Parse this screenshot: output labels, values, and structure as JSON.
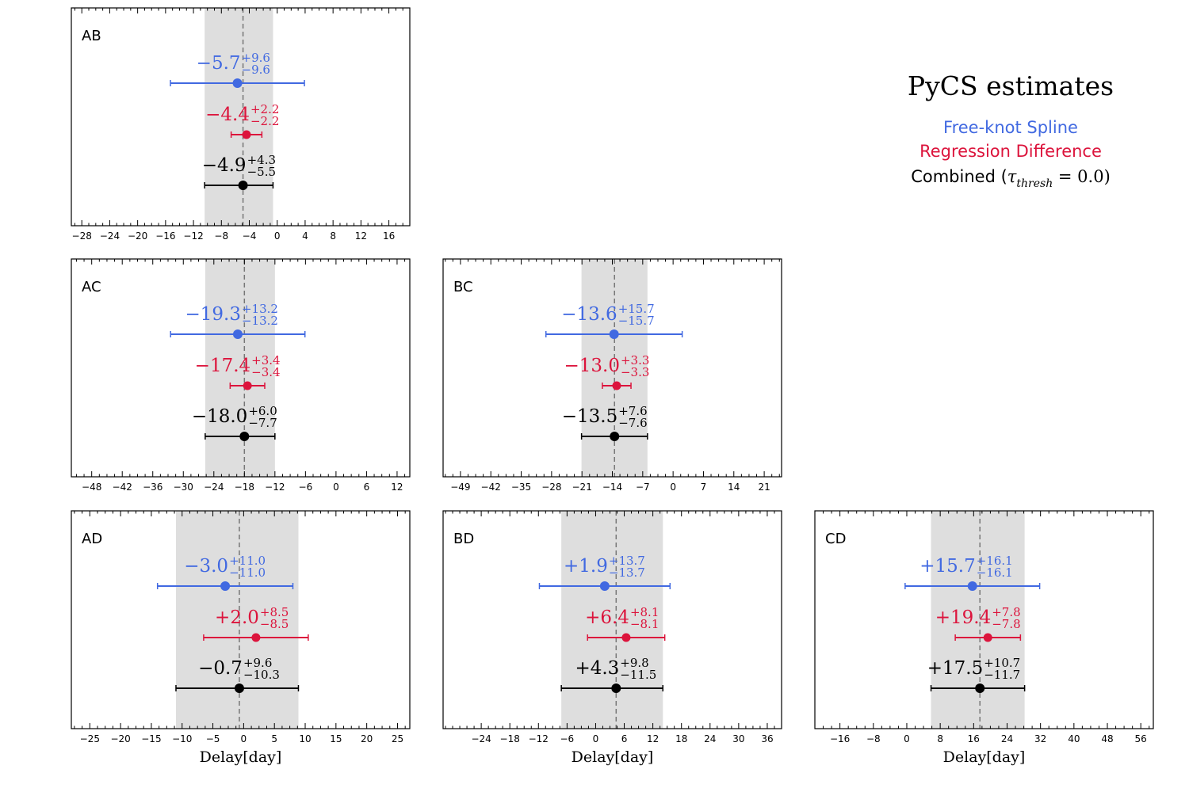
{
  "legend": {
    "title": "PyCS estimates",
    "entries": [
      {
        "label": "Free-knot Spline",
        "color": "#4169e1"
      },
      {
        "label": "Regression Difference",
        "color": "#dc143c"
      },
      {
        "label_prefix": "Combined (",
        "label_math": "τ",
        "label_sub": "thresh",
        "label_suffix": " = 0.0)",
        "color": "#000000"
      }
    ]
  },
  "xlabel": "Delay[day]",
  "chart_data": [
    {
      "type": "errorbar",
      "pair": "AB",
      "xlim": [
        -29.5,
        19
      ],
      "ticks": [
        -28,
        -24,
        -20,
        -16,
        -12,
        -8,
        -4,
        0,
        4,
        8,
        12,
        16
      ],
      "band": [
        -10.4,
        -0.6
      ],
      "dashed_at": -4.9,
      "show_xlabel": false,
      "estimates": [
        {
          "method": "Free-knot Spline",
          "value": -5.7,
          "plus": 9.6,
          "minus": 9.6,
          "label": "−5.7",
          "plus_label": "+9.6",
          "minus_label": "−9.6",
          "color": "#4169e1"
        },
        {
          "method": "Regression Difference",
          "value": -4.4,
          "plus": 2.2,
          "minus": 2.2,
          "label": "−4.4",
          "plus_label": "+2.2",
          "minus_label": "−2.2",
          "color": "#dc143c"
        },
        {
          "method": "Combined",
          "value": -4.9,
          "plus": 4.3,
          "minus": 5.5,
          "label": "−4.9",
          "plus_label": "+4.3",
          "minus_label": "−5.5",
          "color": "#000000"
        }
      ]
    },
    {
      "type": "errorbar",
      "pair": "AC",
      "xlim": [
        -52,
        14.5
      ],
      "ticks": [
        -48,
        -42,
        -36,
        -30,
        -24,
        -18,
        -12,
        -6,
        0,
        6,
        12
      ],
      "band": [
        -25.7,
        -12.0
      ],
      "dashed_at": -18.0,
      "show_xlabel": false,
      "estimates": [
        {
          "method": "Free-knot Spline",
          "value": -19.3,
          "plus": 13.2,
          "minus": 13.2,
          "label": "−19.3",
          "plus_label": "+13.2",
          "minus_label": "−13.2",
          "color": "#4169e1"
        },
        {
          "method": "Regression Difference",
          "value": -17.4,
          "plus": 3.4,
          "minus": 3.4,
          "label": "−17.4",
          "plus_label": "+3.4",
          "minus_label": "−3.4",
          "color": "#dc143c"
        },
        {
          "method": "Combined",
          "value": -18.0,
          "plus": 6.0,
          "minus": 7.7,
          "label": "−18.0",
          "plus_label": "+6.0",
          "minus_label": "−7.7",
          "color": "#000000"
        }
      ]
    },
    {
      "type": "errorbar",
      "pair": "BC",
      "xlim": [
        -53,
        25
      ],
      "ticks": [
        -49,
        -42,
        -35,
        -28,
        -21,
        -14,
        -7,
        0,
        7,
        14,
        21
      ],
      "band": [
        -21.1,
        -5.9
      ],
      "dashed_at": -13.5,
      "show_xlabel": false,
      "estimates": [
        {
          "method": "Free-knot Spline",
          "value": -13.6,
          "plus": 15.7,
          "minus": 15.7,
          "label": "−13.6",
          "plus_label": "+15.7",
          "minus_label": "−15.7",
          "color": "#4169e1"
        },
        {
          "method": "Regression Difference",
          "value": -13.0,
          "plus": 3.3,
          "minus": 3.3,
          "label": "−13.0",
          "plus_label": "+3.3",
          "minus_label": "−3.3",
          "color": "#dc143c"
        },
        {
          "method": "Combined",
          "value": -13.5,
          "plus": 7.6,
          "minus": 7.6,
          "label": "−13.5",
          "plus_label": "+7.6",
          "minus_label": "−7.6",
          "color": "#000000"
        }
      ]
    },
    {
      "type": "errorbar",
      "pair": "AD",
      "xlim": [
        -28,
        27
      ],
      "ticks": [
        -25,
        -20,
        -15,
        -10,
        -5,
        0,
        5,
        10,
        15,
        20,
        25
      ],
      "band": [
        -11.0,
        8.9
      ],
      "dashed_at": -0.7,
      "show_xlabel": true,
      "estimates": [
        {
          "method": "Free-knot Spline",
          "value": -3.0,
          "plus": 11.0,
          "minus": 11.0,
          "label": "−3.0",
          "plus_label": "+11.0",
          "minus_label": "−11.0",
          "color": "#4169e1"
        },
        {
          "method": "Regression Difference",
          "value": 2.0,
          "plus": 8.5,
          "minus": 8.5,
          "label": "+2.0",
          "plus_label": "+8.5",
          "minus_label": "−8.5",
          "color": "#dc143c"
        },
        {
          "method": "Combined",
          "value": -0.7,
          "plus": 9.6,
          "minus": 10.3,
          "label": "−0.7",
          "plus_label": "+9.6",
          "minus_label": "−10.3",
          "color": "#000000"
        }
      ]
    },
    {
      "type": "errorbar",
      "pair": "BD",
      "xlim": [
        -32,
        39
      ],
      "ticks": [
        -24,
        -18,
        -12,
        -6,
        0,
        6,
        12,
        18,
        24,
        30,
        36
      ],
      "band": [
        -7.2,
        14.1
      ],
      "dashed_at": 4.3,
      "show_xlabel": true,
      "estimates": [
        {
          "method": "Free-knot Spline",
          "value": 1.9,
          "plus": 13.7,
          "minus": 13.7,
          "label": "+1.9",
          "plus_label": "+13.7",
          "minus_label": "−13.7",
          "color": "#4169e1"
        },
        {
          "method": "Regression Difference",
          "value": 6.4,
          "plus": 8.1,
          "minus": 8.1,
          "label": "+6.4",
          "plus_label": "+8.1",
          "minus_label": "−8.1",
          "color": "#dc143c"
        },
        {
          "method": "Combined",
          "value": 4.3,
          "plus": 9.8,
          "minus": 11.5,
          "label": "+4.3",
          "plus_label": "+9.8",
          "minus_label": "−11.5",
          "color": "#000000"
        }
      ]
    },
    {
      "type": "errorbar",
      "pair": "CD",
      "xlim": [
        -22,
        59
      ],
      "ticks": [
        -16,
        -8,
        0,
        8,
        16,
        24,
        32,
        40,
        48,
        56
      ],
      "band": [
        5.8,
        28.2
      ],
      "dashed_at": 17.5,
      "show_xlabel": true,
      "estimates": [
        {
          "method": "Free-knot Spline",
          "value": 15.7,
          "plus": 16.1,
          "minus": 16.1,
          "label": "+15.7",
          "plus_label": "+16.1",
          "minus_label": "−16.1",
          "color": "#4169e1"
        },
        {
          "method": "Regression Difference",
          "value": 19.4,
          "plus": 7.8,
          "minus": 7.8,
          "label": "+19.4",
          "plus_label": "+7.8",
          "minus_label": "−7.8",
          "color": "#dc143c"
        },
        {
          "method": "Combined",
          "value": 17.5,
          "plus": 10.7,
          "minus": 11.7,
          "label": "+17.5",
          "plus_label": "+10.7",
          "minus_label": "−11.7",
          "color": "#000000"
        }
      ]
    }
  ]
}
